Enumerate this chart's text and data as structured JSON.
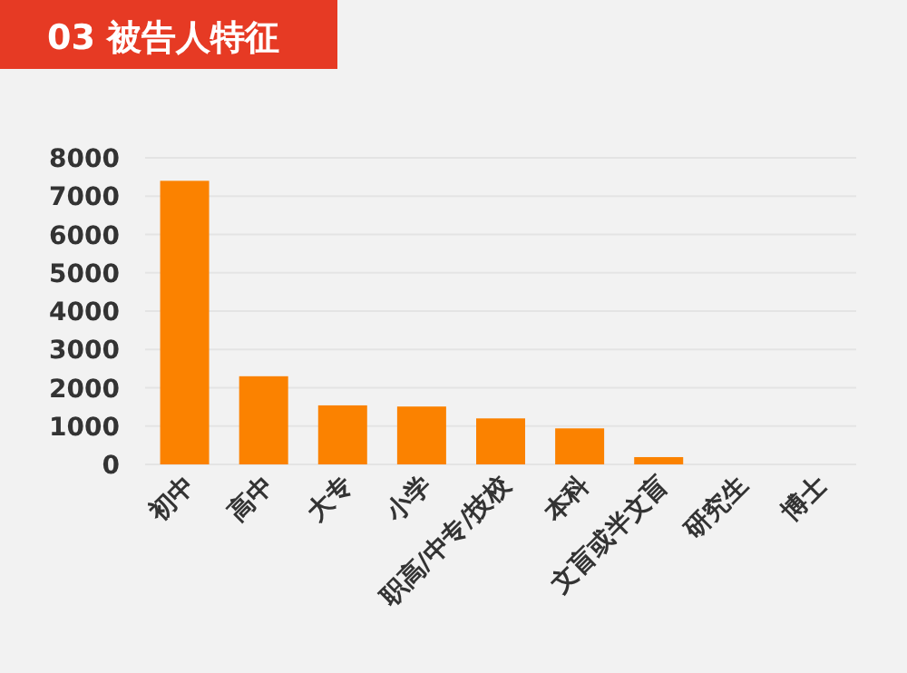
{
  "chart_data": {
    "type": "bar",
    "title": "03  被告人特征",
    "categories": [
      "初中",
      "高中",
      "大专",
      "小学",
      "职高/中专/技校",
      "本科",
      "文盲或半文盲",
      "研究生",
      "博士"
    ],
    "values": [
      7400,
      2300,
      1540,
      1510,
      1200,
      940,
      190,
      0,
      0
    ],
    "color": "#fb8200",
    "ylim": [
      0,
      8000
    ],
    "yticks": [
      0,
      1000,
      2000,
      3000,
      4000,
      5000,
      6000,
      7000,
      8000
    ],
    "grid": "y"
  }
}
